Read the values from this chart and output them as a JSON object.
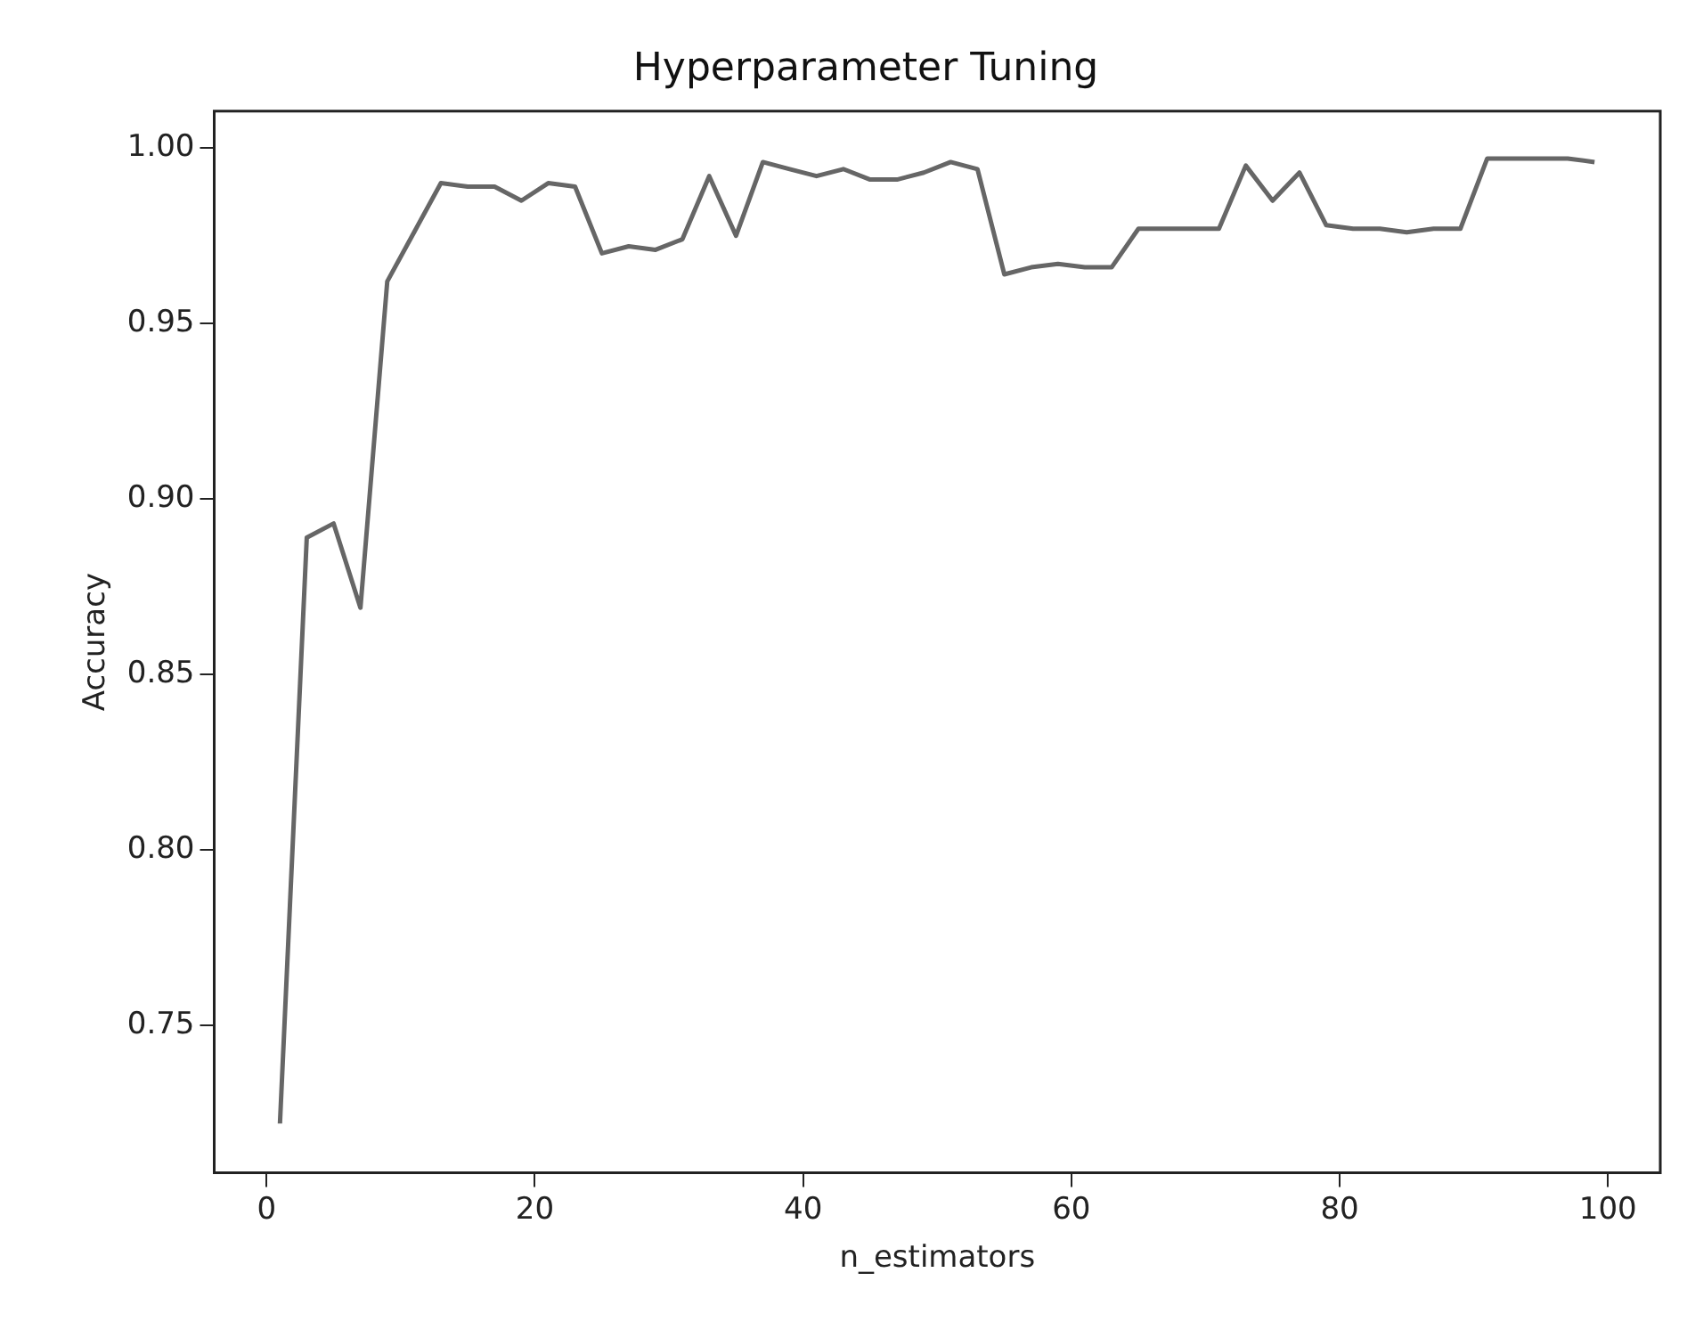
{
  "chart_data": {
    "type": "line",
    "title": "Hyperparameter Tuning",
    "xlabel": "n_estimators",
    "ylabel": "Accuracy",
    "x": [
      1,
      3,
      5,
      7,
      9,
      11,
      13,
      15,
      17,
      19,
      21,
      23,
      25,
      27,
      29,
      31,
      33,
      35,
      37,
      39,
      41,
      43,
      45,
      47,
      49,
      51,
      53,
      55,
      57,
      59,
      61,
      63,
      65,
      67,
      69,
      71,
      73,
      75,
      77,
      79,
      81,
      83,
      85,
      87,
      89,
      91,
      93,
      95,
      97,
      99
    ],
    "series": [
      {
        "color": "#666666",
        "values": [
          0.722,
          0.889,
          0.893,
          0.869,
          0.962,
          0.976,
          0.99,
          0.989,
          0.989,
          0.985,
          0.99,
          0.989,
          0.97,
          0.972,
          0.971,
          0.974,
          0.992,
          0.975,
          0.996,
          0.994,
          0.992,
          0.994,
          0.991,
          0.991,
          0.993,
          0.996,
          0.994,
          0.964,
          0.966,
          0.967,
          0.966,
          0.966,
          0.977,
          0.977,
          0.977,
          0.977,
          0.995,
          0.985,
          0.993,
          0.978,
          0.977,
          0.977,
          0.976,
          0.977,
          0.977,
          0.997,
          0.997,
          0.997,
          0.997,
          0.996
        ]
      }
    ],
    "xlim": [
      -3.9,
      103.9
    ],
    "xticks": [
      0,
      20,
      40,
      60,
      80,
      100
    ],
    "ylim": [
      0.708,
      1.0105
    ],
    "yticks": [
      {
        "value": 0.75,
        "label": "0.75"
      },
      {
        "value": 0.8,
        "label": "0.80"
      },
      {
        "value": 0.85,
        "label": "0.85"
      },
      {
        "value": 0.9,
        "label": "0.90"
      },
      {
        "value": 0.95,
        "label": "0.95"
      },
      {
        "value": 1,
        "label": "1.00"
      }
    ],
    "grid": false,
    "legend": false,
    "marker": "none",
    "line_style": "solid"
  }
}
